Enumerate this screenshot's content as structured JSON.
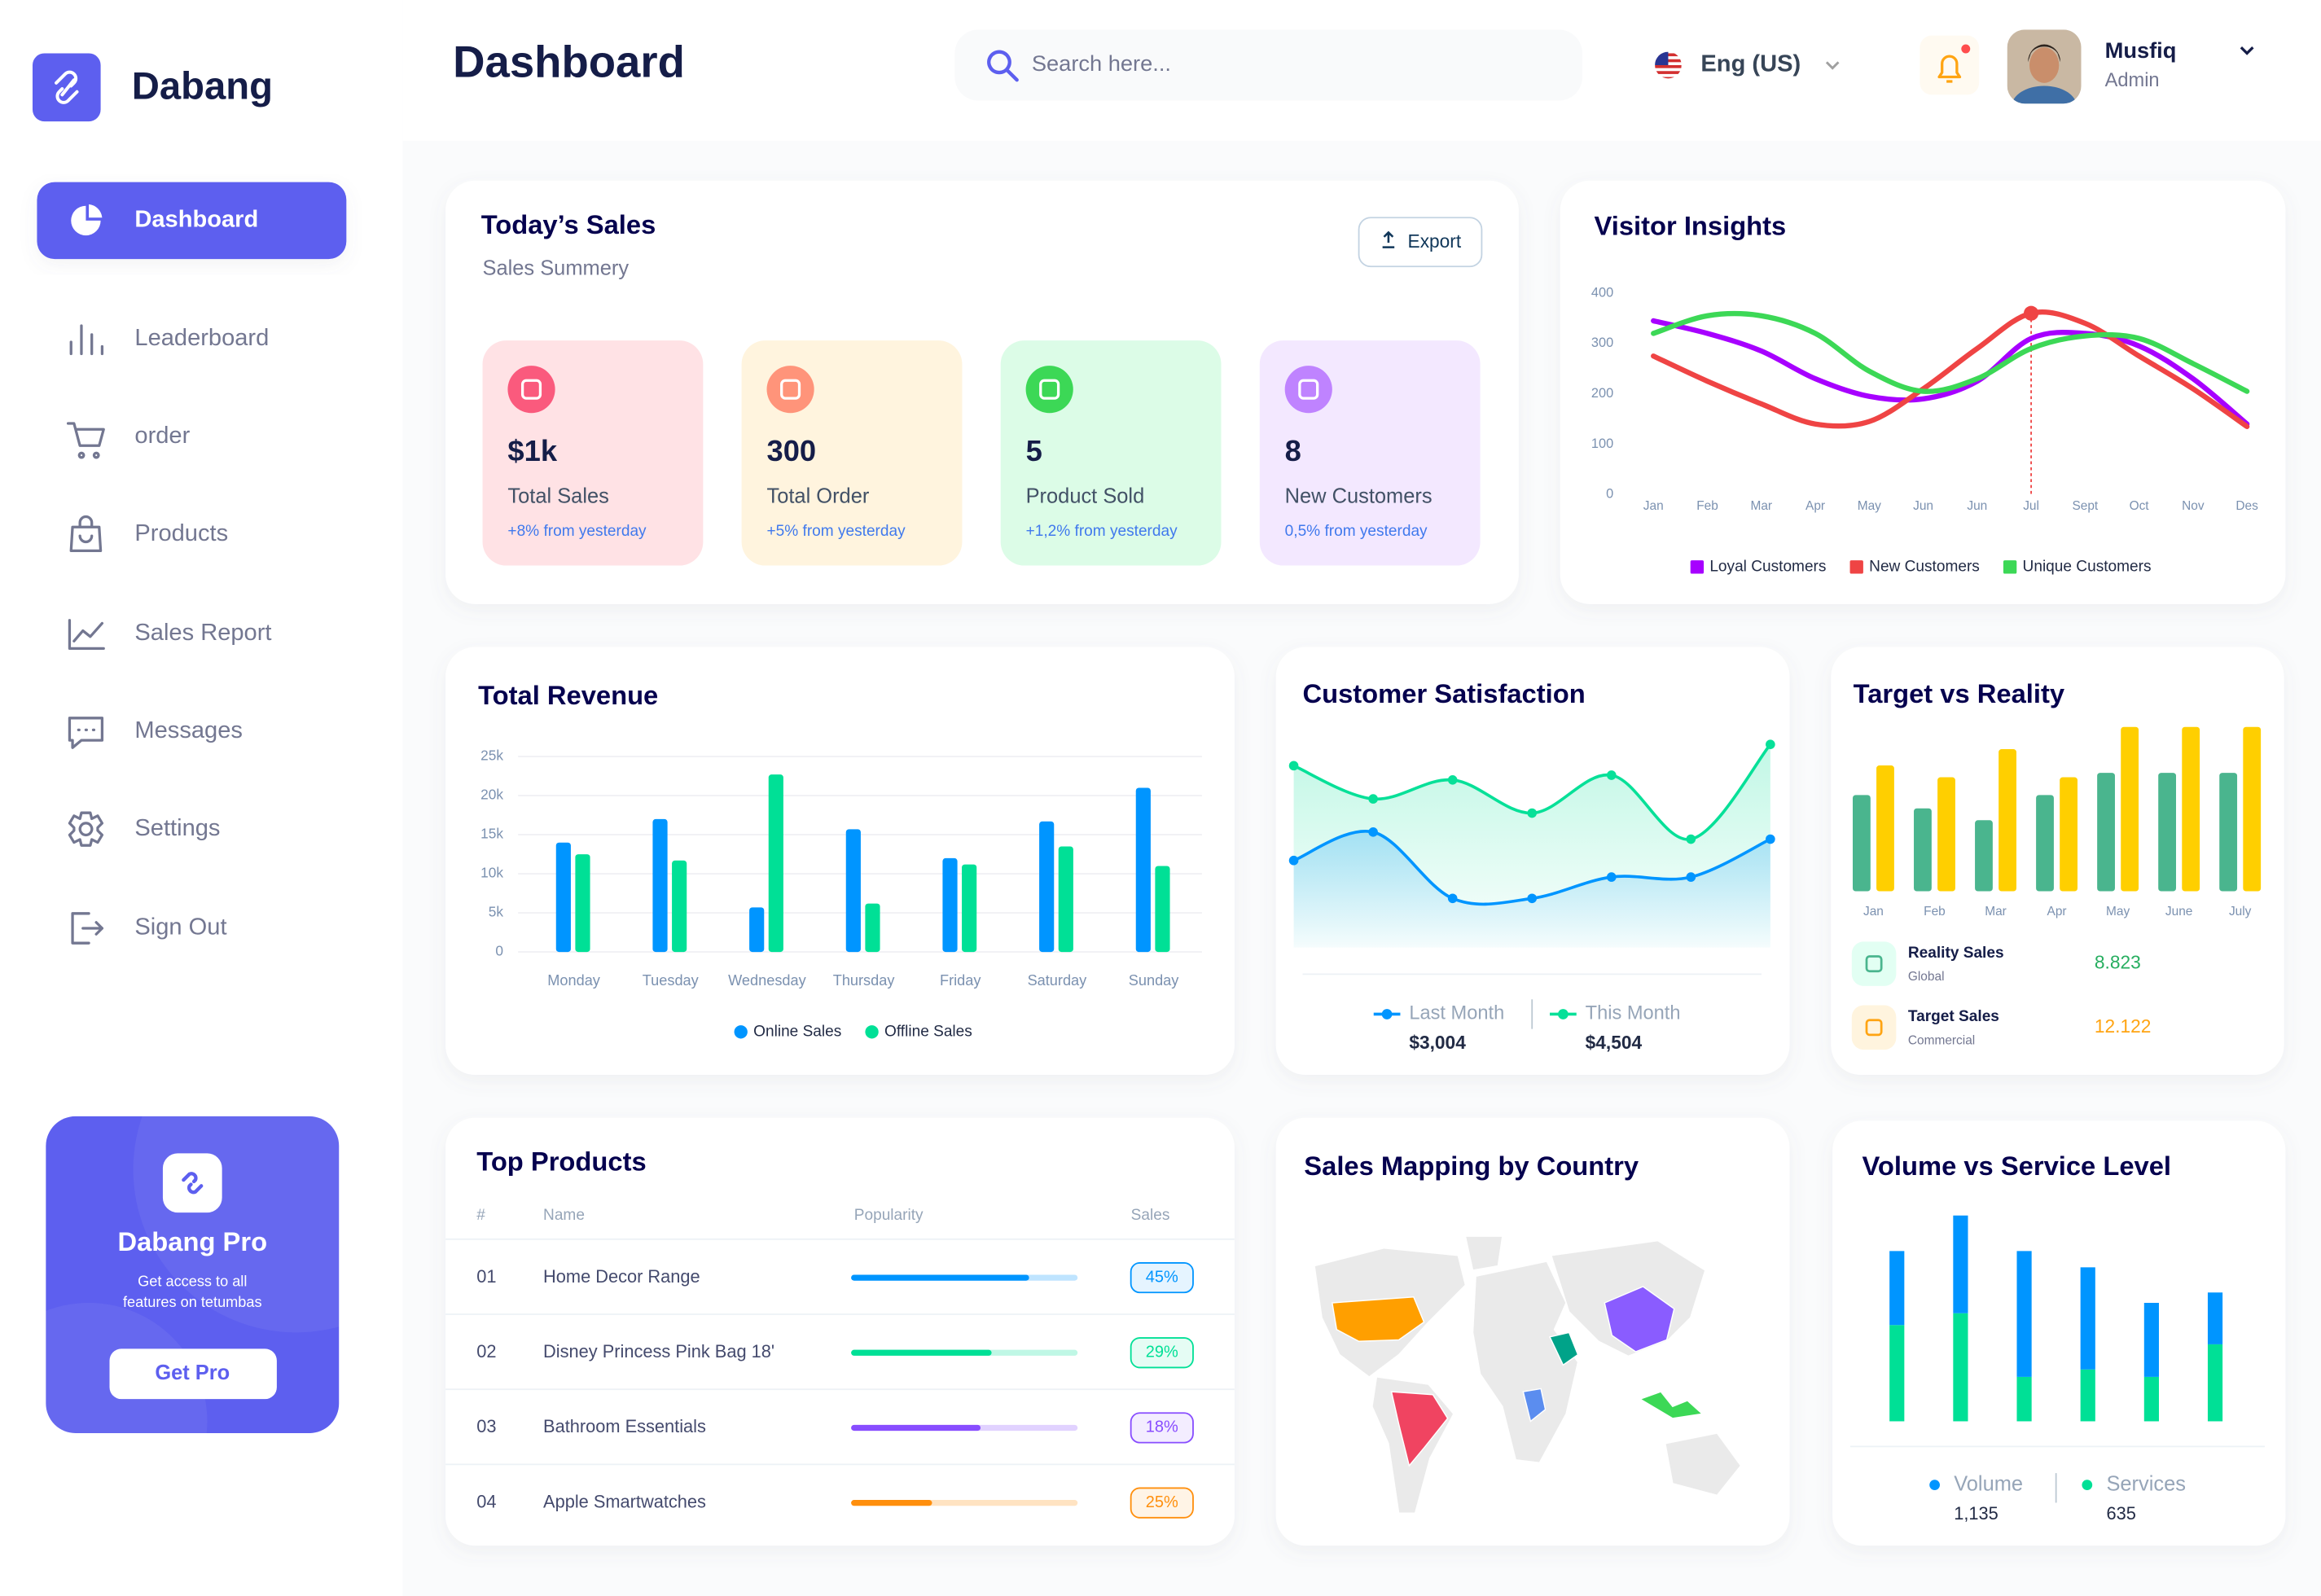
{
  "sidebar": {
    "brand": "Dabang",
    "menu": [
      "Dashboard",
      "Leaderboard",
      "order",
      "Products",
      "Sales Report",
      "Messages",
      "Settings",
      "Sign Out"
    ],
    "promo": {
      "title": "Dabang Pro",
      "text_lines": [
        "Get access to all",
        "features on tetumbas"
      ],
      "button": "Get Pro"
    }
  },
  "header": {
    "title": "Dashboard",
    "search_placeholder": "Search here...",
    "language": "Eng (US)",
    "user_name": "Musfiq",
    "user_role": "Admin"
  },
  "todays_sales": {
    "title": "Today’s Sales",
    "subtitle": "Sales Summery",
    "button": "Export",
    "cards": [
      {
        "value": "$1k",
        "label": "Total Sales",
        "change": "+8% from yesterday",
        "color": "#ffe2e5",
        "icon_color": "#fa5a7d"
      },
      {
        "value": "300",
        "label": "Total Order",
        "change": "+5% from yesterday",
        "color": "#fff4de",
        "icon_color": "#ff947a"
      },
      {
        "value": "5",
        "label": "Product Sold",
        "change": "+1,2% from yesterday",
        "color": "#dcfce7",
        "icon_color": "#3cd856"
      },
      {
        "value": "8",
        "label": "New Customers",
        "change": "0,5% from yesterday",
        "color": "#f3e8ff",
        "icon_color": "#bf83ff"
      }
    ]
  },
  "top_products": {
    "title": "Top Products",
    "columns": [
      "#",
      "Name",
      "Popularity",
      "Sales"
    ],
    "rows": [
      {
        "rank": "01",
        "name": "Home Decor Range",
        "popularity": 78,
        "sales": "45%",
        "color": "#0095ff"
      },
      {
        "rank": "02",
        "name": "Disney Princess Pink Bag 18'",
        "popularity": 61,
        "sales": "29%",
        "color": "#00e096"
      },
      {
        "rank": "03",
        "name": "Bathroom Essentials",
        "popularity": 56,
        "sales": "18%",
        "color": "#884dff"
      },
      {
        "rank": "04",
        "name": "Apple Smartwatches",
        "popularity": 34,
        "sales": "25%",
        "color": "#ff8f0d"
      }
    ]
  },
  "sales_mapping": {
    "title": "Sales Mapping by Country"
  },
  "chart_data": [
    {
      "type": "line",
      "title": "Visitor Insights",
      "categories": [
        "Jan",
        "Feb",
        "Mar",
        "Apr",
        "May",
        "Jun",
        "Jun",
        "Jul",
        "Sept",
        "Oct",
        "Nov",
        "Des"
      ],
      "ylim": [
        0,
        400
      ],
      "yticks": [
        0,
        100,
        200,
        300,
        400
      ],
      "grid": false,
      "series": [
        {
          "name": "Loyal Customers",
          "color": "#a700ff",
          "values": [
            345,
            320,
            285,
            230,
            195,
            190,
            225,
            310,
            320,
            295,
            230,
            140
          ]
        },
        {
          "name": "New Customers",
          "color": "#ef4444",
          "values": [
            275,
            225,
            180,
            140,
            145,
            210,
            290,
            360,
            340,
            275,
            210,
            135
          ]
        },
        {
          "name": "Unique Customers",
          "color": "#3cd856",
          "values": [
            320,
            355,
            355,
            320,
            245,
            205,
            230,
            290,
            315,
            310,
            260,
            205
          ]
        }
      ]
    },
    {
      "type": "bar",
      "title": "Total Revenue",
      "categories": [
        "Monday",
        "Tuesday",
        "Wednesday",
        "Thursday",
        "Friday",
        "Saturday",
        "Sunday"
      ],
      "ylim": [
        0,
        25000
      ],
      "yticks": [
        0,
        {
          "value": 5000,
          "label": "5k"
        },
        {
          "value": 10000,
          "label": "10k"
        },
        {
          "value": 15000,
          "label": "15k"
        },
        {
          "value": 20000,
          "label": "20k"
        },
        {
          "value": 25000,
          "label": "25k"
        }
      ],
      "grid": true,
      "series": [
        {
          "name": "Online Sales",
          "color": "#0095ff",
          "values": [
            14000,
            17000,
            5700,
            15700,
            12000,
            16700,
            21000
          ]
        },
        {
          "name": "Offline Sales",
          "color": "#00e096",
          "values": [
            12500,
            11700,
            22700,
            6200,
            11200,
            13500,
            11000
          ]
        }
      ]
    },
    {
      "type": "area",
      "title": "Customer Satisfaction",
      "categories": [
        null,
        null,
        null,
        null,
        null,
        null,
        null
      ],
      "ylim": [
        0,
        100
      ],
      "series": [
        {
          "name": "Last Month",
          "color": "#0095ff",
          "values": [
            43,
            55,
            27,
            27,
            36,
            36,
            52
          ],
          "total": "$3,004"
        },
        {
          "name": "This Month",
          "color": "#07e098",
          "values": [
            83,
            69,
            77,
            63,
            79,
            52,
            92
          ],
          "total": "$4,504"
        }
      ]
    },
    {
      "type": "bar",
      "title": "Target vs Reality",
      "categories": [
        "Jan",
        "Feb",
        "Mar",
        "Apr",
        "May",
        "June",
        "July"
      ],
      "ylim": [
        0,
        115
      ],
      "series": [
        {
          "name": "Reality Sales",
          "subtitle": "Global",
          "total": "8.823",
          "color": "#4ab58e",
          "values": [
            65,
            56,
            48,
            65,
            80,
            80,
            80
          ]
        },
        {
          "name": "Target Sales",
          "subtitle": "Commercial",
          "total": "12.122",
          "color": "#ffcf00",
          "values": [
            85,
            77,
            96,
            77,
            111,
            111,
            111
          ]
        }
      ]
    },
    {
      "type": "stacked-bar",
      "title": "Volume vs Service Level",
      "categories": [
        null,
        null,
        null,
        null,
        null,
        null
      ],
      "ylim": [
        0,
        145
      ],
      "series": [
        {
          "name": "Volume",
          "color": "#0095ff",
          "values": [
            50,
            66,
            85,
            69,
            50,
            35
          ],
          "total": "1,135"
        },
        {
          "name": "Services",
          "color": "#00e096",
          "values": [
            65,
            73,
            30,
            35,
            30,
            52
          ],
          "total": "635"
        }
      ]
    }
  ]
}
